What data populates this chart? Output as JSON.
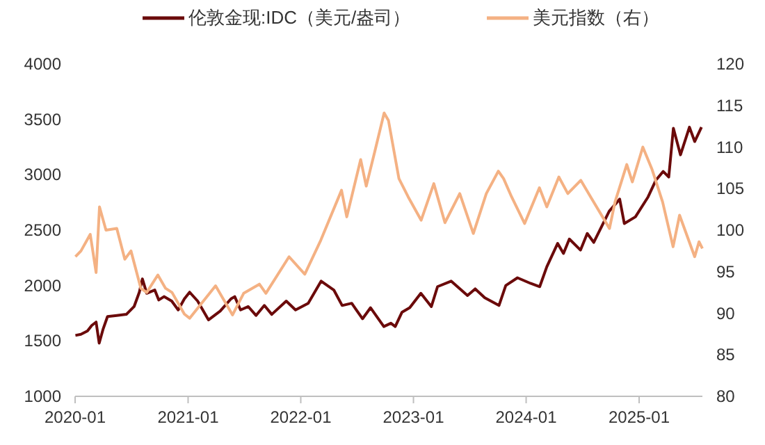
{
  "chart_data": {
    "type": "line",
    "legend": "top",
    "grid": false,
    "xlim": [
      "2020-01-01",
      "2025-07-25"
    ],
    "xticks": [
      "2020-01",
      "2021-01",
      "2022-01",
      "2023-01",
      "2024-01",
      "2025-01"
    ],
    "ylim": [
      1000,
      4000
    ],
    "yticks": [
      1000,
      1500,
      2000,
      2500,
      3000,
      3500,
      4000
    ],
    "y2lim": [
      80,
      120
    ],
    "y2ticks": [
      80,
      85,
      90,
      95,
      100,
      105,
      110,
      115,
      120
    ],
    "series": [
      {
        "name": "伦敦金现:IDC（美元/盎司）",
        "color": "#6b0a0a",
        "x": [
          "2020-01-02",
          "2020-01-20",
          "2020-02-10",
          "2020-02-24",
          "2020-03-09",
          "2020-03-19",
          "2020-04-01",
          "2020-04-15",
          "2020-05-15",
          "2020-06-15",
          "2020-07-10",
          "2020-07-27",
          "2020-08-06",
          "2020-08-20",
          "2020-09-15",
          "2020-09-28",
          "2020-10-15",
          "2020-11-09",
          "2020-11-30",
          "2020-12-20",
          "2021-01-06",
          "2021-02-01",
          "2021-03-08",
          "2021-04-15",
          "2021-05-20",
          "2021-06-01",
          "2021-06-20",
          "2021-07-15",
          "2021-08-09",
          "2021-09-05",
          "2021-09-29",
          "2021-11-15",
          "2021-12-15",
          "2022-01-25",
          "2022-03-08",
          "2022-04-18",
          "2022-05-15",
          "2022-06-15",
          "2022-07-20",
          "2022-08-15",
          "2022-09-27",
          "2022-10-20",
          "2022-11-03",
          "2022-11-25",
          "2022-12-20",
          "2023-01-25",
          "2023-02-28",
          "2023-03-20",
          "2023-05-03",
          "2023-06-25",
          "2023-07-20",
          "2023-08-20",
          "2023-10-05",
          "2023-10-27",
          "2023-12-04",
          "2024-01-15",
          "2024-02-14",
          "2024-03-08",
          "2024-04-12",
          "2024-05-01",
          "2024-05-20",
          "2024-06-25",
          "2024-07-17",
          "2024-08-07",
          "2024-09-26",
          "2024-10-30",
          "2024-11-14",
          "2024-12-20",
          "2025-01-30",
          "2025-02-24",
          "2025-03-20",
          "2025-04-07",
          "2025-04-22",
          "2025-05-15",
          "2025-06-13",
          "2025-06-30",
          "2025-07-22"
        ],
        "values": [
          1550,
          1560,
          1590,
          1640,
          1670,
          1480,
          1610,
          1720,
          1730,
          1740,
          1810,
          1940,
          2060,
          1930,
          1960,
          1870,
          1900,
          1860,
          1780,
          1880,
          1940,
          1860,
          1690,
          1770,
          1880,
          1900,
          1780,
          1810,
          1730,
          1820,
          1740,
          1860,
          1780,
          1840,
          2040,
          1960,
          1820,
          1840,
          1700,
          1800,
          1630,
          1660,
          1630,
          1760,
          1800,
          1930,
          1810,
          1990,
          2040,
          1910,
          1970,
          1890,
          1820,
          2000,
          2070,
          2020,
          1990,
          2170,
          2380,
          2290,
          2420,
          2320,
          2470,
          2390,
          2670,
          2780,
          2560,
          2620,
          2800,
          2950,
          3030,
          2980,
          3420,
          3180,
          3430,
          3300,
          3430
        ]
      },
      {
        "name": "美元指数（右）",
        "color": "#f4b183",
        "axis": "y2",
        "x": [
          "2020-01-02",
          "2020-01-20",
          "2020-02-19",
          "2020-03-09",
          "2020-03-20",
          "2020-04-10",
          "2020-05-15",
          "2020-06-10",
          "2020-06-30",
          "2020-08-01",
          "2020-08-20",
          "2020-09-25",
          "2020-10-20",
          "2020-11-10",
          "2020-12-20",
          "2021-01-06",
          "2021-03-31",
          "2021-05-25",
          "2021-06-30",
          "2021-08-20",
          "2021-09-10",
          "2021-11-24",
          "2022-01-14",
          "2022-03-07",
          "2022-05-13",
          "2022-05-30",
          "2022-07-14",
          "2022-08-01",
          "2022-08-29",
          "2022-09-28",
          "2022-10-12",
          "2022-11-15",
          "2022-12-15",
          "2023-01-26",
          "2023-03-08",
          "2023-04-13",
          "2023-05-31",
          "2023-07-14",
          "2023-08-25",
          "2023-10-03",
          "2023-10-20",
          "2023-11-15",
          "2023-12-27",
          "2024-02-13",
          "2024-03-08",
          "2024-04-16",
          "2024-05-15",
          "2024-06-26",
          "2024-07-31",
          "2024-09-27",
          "2024-10-15",
          "2024-11-22",
          "2024-12-10",
          "2025-01-13",
          "2025-02-12",
          "2025-03-18",
          "2025-04-21",
          "2025-05-12",
          "2025-06-30",
          "2025-07-14",
          "2025-07-25"
        ],
        "values": [
          96.8,
          97.5,
          99.5,
          94.9,
          102.8,
          100.0,
          100.2,
          96.5,
          97.5,
          93.0,
          92.5,
          94.6,
          93.0,
          92.5,
          89.9,
          89.4,
          93.3,
          89.8,
          92.4,
          93.5,
          92.4,
          96.8,
          94.7,
          98.8,
          104.8,
          101.6,
          108.5,
          105.3,
          109.5,
          114.1,
          113.2,
          106.2,
          104.0,
          101.2,
          105.6,
          100.9,
          104.4,
          99.6,
          104.4,
          107.1,
          106.2,
          104.0,
          100.8,
          105.1,
          102.8,
          106.4,
          104.4,
          106.0,
          103.8,
          100.2,
          103.4,
          107.9,
          105.8,
          110.0,
          107.3,
          103.4,
          98.0,
          101.8,
          96.8,
          98.6,
          97.8
        ]
      }
    ]
  }
}
